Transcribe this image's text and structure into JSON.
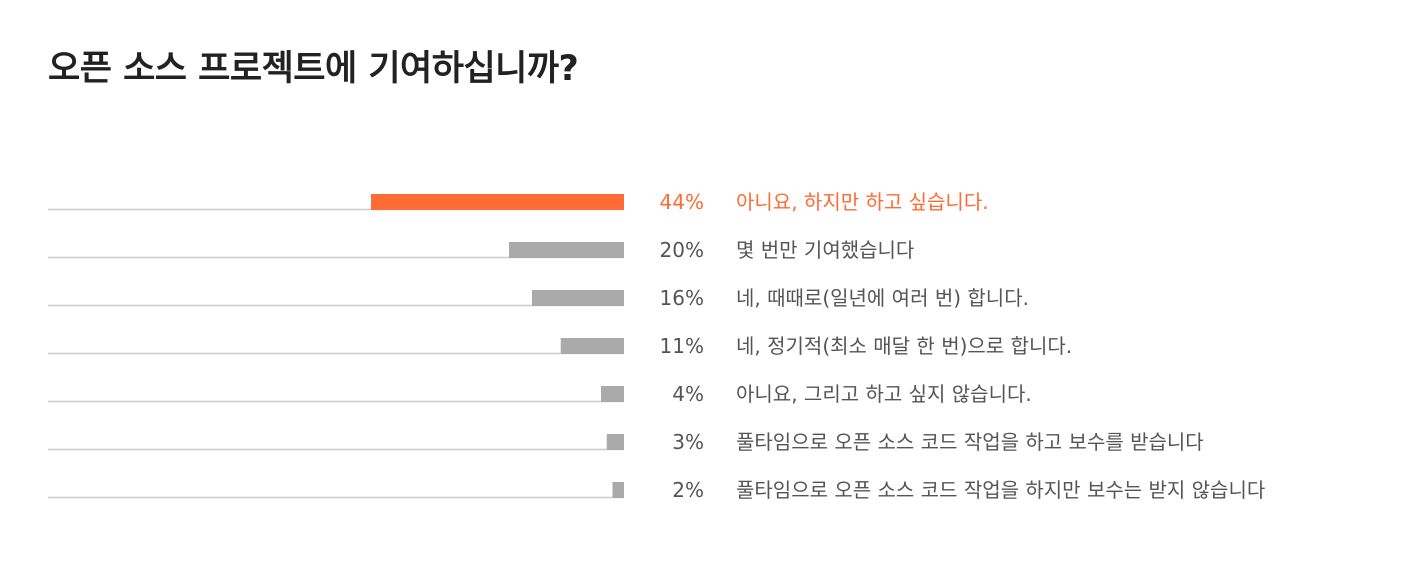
{
  "chart_data": {
    "type": "bar",
    "orientation": "horizontal",
    "title": "오픈 소스 프로젝트에 기여하십니까?",
    "unit": "%",
    "categories": [
      "아니요, 하지만 하고 싶습니다.",
      "몇 번만 기여했습니다",
      "네, 때때로(일년에 여러 번) 합니다.",
      "네, 정기적(최소 매달 한 번)으로 합니다.",
      "아니요, 그리고 하고 싶지 않습니다.",
      "풀타임으로 오픈 소스 코드 작업을 하고 보수를 받습니다",
      "풀타임으로 오픈 소스 코드 작업을 하지만 보수는 받지 않습니다"
    ],
    "values": [
      44,
      20,
      16,
      11,
      4,
      3,
      2
    ],
    "value_labels": [
      "44%",
      "20%",
      "16%",
      "11%",
      "4%",
      "3%",
      "2%"
    ],
    "highlight_index": 0,
    "xlim": [
      0,
      44
    ],
    "grid": false,
    "legend": "none"
  },
  "colors": {
    "highlight": "#ff6b35",
    "bar": "#aaaaaa",
    "baseline": "#cccccc",
    "text": "#555555",
    "title": "#222222"
  }
}
